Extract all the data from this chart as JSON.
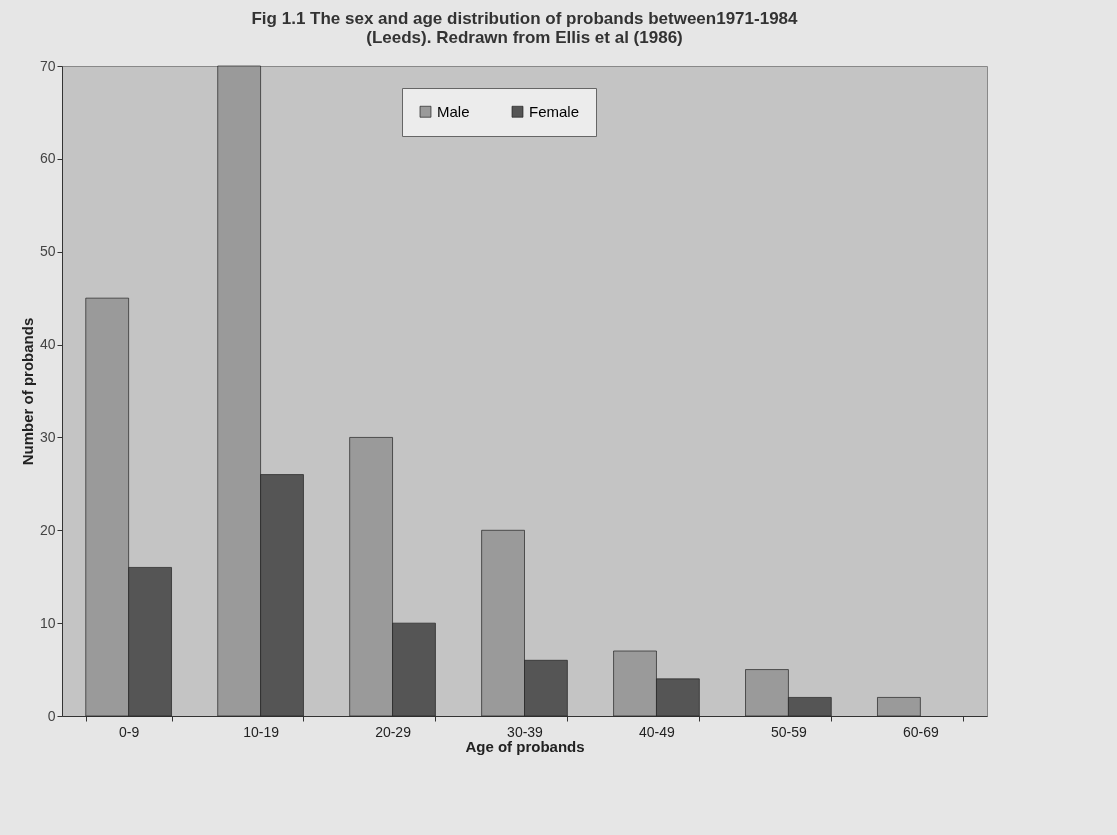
{
  "chart_data": {
    "type": "bar",
    "title": "Fig 1.1 The sex and age distribution of probands between1971-1984 (Leeds). Redrawn from Ellis et al (1986)",
    "xlabel": "Age of probands",
    "ylabel": "Number of probands",
    "categories": [
      "0-9",
      "10-19",
      "20-29",
      "30-39",
      "40-49",
      "50-59",
      "60-69"
    ],
    "series": [
      {
        "name": "Male",
        "color": "#9a9a9a",
        "values": [
          45,
          70,
          30,
          20,
          7,
          5,
          2
        ]
      },
      {
        "name": "Female",
        "color": "#555555",
        "values": [
          16,
          26,
          10,
          6,
          4,
          2,
          null
        ]
      }
    ],
    "ylim": [
      0,
      70
    ],
    "yticks": [
      0,
      10,
      20,
      30,
      40,
      50,
      60,
      70
    ],
    "grid": false,
    "legend": "top"
  }
}
